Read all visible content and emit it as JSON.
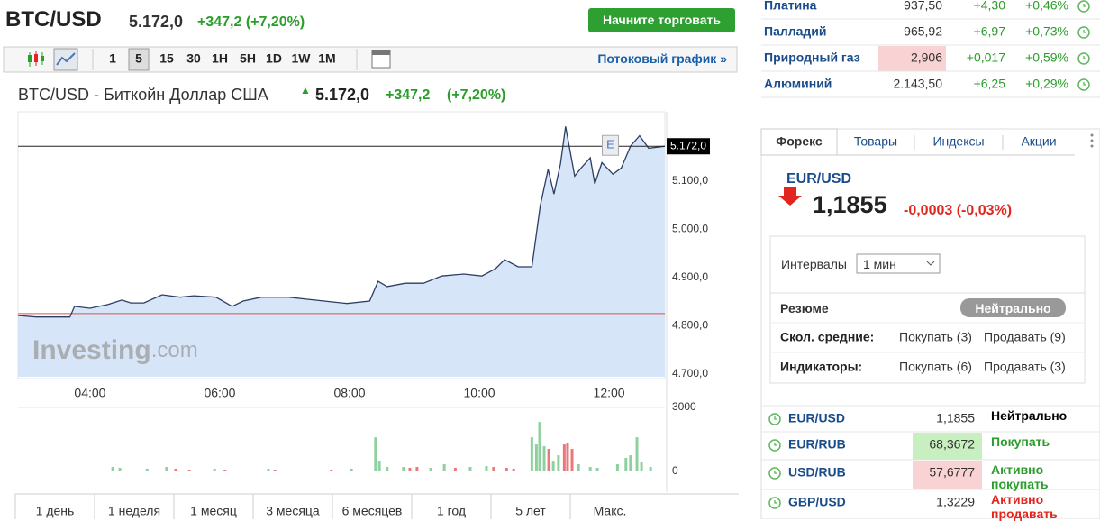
{
  "header": {
    "symbol": "BTC/USD",
    "price": "5.172,0",
    "change": "+347,2 (+7,20%)",
    "trade_button": "Начните торговать"
  },
  "toolbar": {
    "intervals": [
      "1",
      "5",
      "15",
      "30",
      "1H",
      "5H",
      "1D",
      "1W",
      "1M"
    ],
    "active_interval": "5",
    "streaming_link": "Потоковый график »"
  },
  "chart_header": {
    "name": "BTC/USD - Биткойн Доллар США",
    "price": "5.172,0",
    "change": "+347,2",
    "change_pct": "(+7,20%)"
  },
  "watermark": [
    "Investing",
    ".com"
  ],
  "chart_data": [
    {
      "type": "line",
      "color": "#2d3e63",
      "fill": "#d6e6f8",
      "x": [
        2.89,
        3.17,
        3.44,
        3.69,
        3.76,
        4.0,
        4.28,
        4.49,
        4.63,
        4.83,
        5.11,
        5.39,
        5.6,
        5.94,
        6.19,
        6.36,
        6.64,
        7.06,
        7.33,
        7.61,
        7.96,
        8.31,
        8.44,
        8.58,
        8.86,
        9.14,
        9.42,
        9.76,
        10.04,
        10.25,
        10.39,
        10.6,
        10.81,
        10.94,
        11.06,
        11.15,
        11.25,
        11.33,
        11.47,
        11.57,
        11.71,
        11.78,
        11.89,
        11.99,
        12.06,
        12.19,
        12.33,
        12.47,
        12.61,
        12.86
      ],
      "values": [
        4821,
        4818,
        4818,
        4818,
        4840,
        4836,
        4844,
        4853,
        4847,
        4847,
        4864,
        4859,
        4862,
        4859,
        4840,
        4851,
        4859,
        4859,
        4855,
        4851,
        4846,
        4851,
        4892,
        4881,
        4888,
        4888,
        4903,
        4907,
        4903,
        4918,
        4937,
        4922,
        4922,
        5049,
        5124,
        5073,
        5135,
        5213,
        5110,
        5127,
        5148,
        5094,
        5138,
        5124,
        5114,
        5127,
        5172,
        5194,
        5168,
        5172
      ],
      "xlim": [
        2.89,
        12.86
      ],
      "xticks": [
        {
          "value": 4,
          "label": "04:00"
        },
        {
          "value": 6,
          "label": "06:00"
        },
        {
          "value": 8,
          "label": "08:00"
        },
        {
          "value": 10,
          "label": "10:00"
        },
        {
          "value": 12,
          "label": "12:00"
        }
      ],
      "ylim": [
        4694,
        5236
      ],
      "yticks": [
        {
          "value": 4700,
          "label": "4.700,0"
        },
        {
          "value": 4800,
          "label": "4.800,0"
        },
        {
          "value": 4900,
          "label": "4.900,0"
        },
        {
          "value": 5000,
          "label": "5.000,0"
        },
        {
          "value": 5100,
          "label": "5.100,0"
        }
      ],
      "last_value": {
        "value": 5172,
        "label": "5.172,0"
      },
      "reference_line": 4825,
      "reference_color": "#d9534f",
      "event": {
        "x": 12.02,
        "label": "E"
      }
    },
    {
      "type": "bar",
      "x": [
        4.35,
        4.46,
        4.88,
        5.18,
        5.32,
        5.53,
        5.92,
        6.08,
        6.75,
        6.85,
        7.72,
        8.03,
        8.4,
        8.46,
        8.58,
        8.83,
        8.93,
        9.04,
        9.25,
        9.46,
        9.63,
        9.86,
        10.11,
        10.22,
        10.42,
        10.53,
        10.81,
        10.88,
        10.93,
        11.0,
        11.07,
        11.14,
        11.22,
        11.31,
        11.36,
        11.43,
        11.53,
        11.71,
        11.82,
        12.13,
        12.26,
        12.33,
        12.43,
        12.5,
        12.64
      ],
      "values": [
        210,
        170,
        130,
        210,
        130,
        85,
        130,
        85,
        130,
        85,
        85,
        130,
        1600,
        505,
        210,
        210,
        170,
        210,
        170,
        340,
        170,
        210,
        255,
        210,
        170,
        130,
        1600,
        1265,
        2320,
        1180,
        1055,
        505,
        760,
        1265,
        1350,
        1055,
        340,
        210,
        170,
        340,
        635,
        760,
        1600,
        420,
        210
      ],
      "colors": [
        "#8fd19e",
        "#8fd19e",
        "#8fd19e",
        "#8fd19e",
        "#e8787a",
        "#e8787a",
        "#8fd19e",
        "#e8787a",
        "#8fd19e",
        "#e8787a",
        "#e8787a",
        "#8fd19e",
        "#8fd19e",
        "#8fd19e",
        "#8fd19e",
        "#8fd19e",
        "#e8787a",
        "#e8787a",
        "#8fd19e",
        "#8fd19e",
        "#e8787a",
        "#8fd19e",
        "#8fd19e",
        "#e8787a",
        "#e8787a",
        "#e8787a",
        "#8fd19e",
        "#8fd19e",
        "#8fd19e",
        "#8fd19e",
        "#e8787a",
        "#8fd19e",
        "#8fd19e",
        "#e8787a",
        "#e8787a",
        "#e8787a",
        "#8fd19e",
        "#8fd19e",
        "#8fd19e",
        "#8fd19e",
        "#8fd19e",
        "#8fd19e",
        "#8fd19e",
        "#8fd19e",
        "#8fd19e"
      ],
      "xlim": [
        2.89,
        12.86
      ],
      "ylim": [
        0,
        3000
      ],
      "yticks": [
        0,
        3000
      ]
    }
  ],
  "periods": [
    "1 день",
    "1 неделя",
    "1 месяц",
    "3 месяца",
    "6 месяцев",
    "1 год",
    "5 лет",
    "Макс."
  ],
  "commodities": [
    {
      "name": "Платина",
      "last": "937,50",
      "change": "+4,30",
      "pct": "+0,46%"
    },
    {
      "name": "Палладий",
      "last": "965,92",
      "change": "+6,97",
      "pct": "+0,73%"
    },
    {
      "name": "Природный газ",
      "last": "2,906",
      "change": "+0,017",
      "pct": "+0,59%",
      "last_bg": "#f9d3d3"
    },
    {
      "name": "Алюминий",
      "last": "2.143,50",
      "change": "+6,25",
      "pct": "+0,29%"
    }
  ],
  "forex": {
    "tabs": [
      "Форекс",
      "Товары",
      "Индексы",
      "Акции"
    ],
    "pair": "EUR/USD",
    "price": "1,1855",
    "change": "-0,0003 (-0,03%)",
    "intervals_label": "Интервалы",
    "interval_value": "1 мин",
    "summary_label": "Резюме",
    "summary": "Нейтрально",
    "rows": [
      [
        "Скол. средние:",
        "Покупать (3)",
        "Продавать (9)"
      ],
      [
        "Индикаторы:",
        "Покупать (6)",
        "Продавать (3)"
      ]
    ]
  },
  "quotes": [
    {
      "name": "EUR/USD",
      "value": "1,1855",
      "signal": "Нейтрально",
      "signal_color": "#000000"
    },
    {
      "name": "EUR/RUB",
      "value": "68,3672",
      "signal": "Покупать",
      "signal_color": "#2a9d2a",
      "value_bg": "#c8efc0"
    },
    {
      "name": "USD/RUB",
      "value": "57,6777",
      "signal": "Активно покупать",
      "signal_color": "#2a9d2a",
      "value_bg": "#f9d3d3"
    },
    {
      "name": "GBP/USD",
      "value": "1,3229",
      "signal": "Активно продавать",
      "signal_color": "#e0261d"
    }
  ]
}
